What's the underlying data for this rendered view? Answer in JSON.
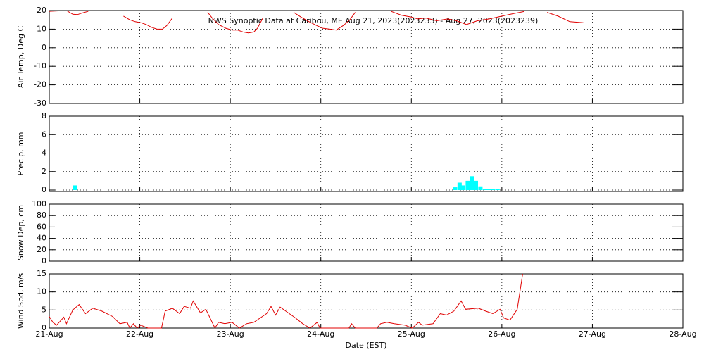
{
  "chart_data": [
    {
      "type": "line",
      "title": "NWS Synoptic Data at Caribou, ME   Aug 21, 2023(2023233) - Aug 27, 2023(2023239)",
      "ylabel": "Air Temp, Deg C",
      "color": "#e00000",
      "xlim": [
        0,
        7
      ],
      "xticks": [
        0,
        1,
        2,
        3,
        4,
        5,
        6,
        7
      ],
      "ylim": [
        -30,
        20
      ],
      "yticks": [
        -30,
        -20,
        -10,
        0,
        10,
        20
      ],
      "grid": true,
      "x": [
        0,
        0.1,
        0.19,
        0.26,
        0.31,
        0.37,
        0.43,
        0.5,
        0.82,
        0.89,
        0.95,
        1.01,
        1.07,
        1.13,
        1.19,
        1.25,
        1.3,
        1.36,
        1.4,
        1.75,
        1.8,
        1.87,
        1.95,
        2.02,
        2.08,
        2.14,
        2.2,
        2.26,
        2.3,
        2.36,
        2.4,
        2.7,
        2.78,
        2.87,
        2.95,
        3.02,
        3.1,
        3.17,
        3.25,
        3.32,
        3.38,
        3.42,
        3.78,
        3.89,
        4.0,
        4.07,
        4.16,
        4.28,
        4.4,
        4.5,
        4.61,
        4.73,
        4.86,
        5.0,
        5.14,
        5.25,
        5.32,
        5.5,
        5.62,
        5.75,
        5.9
      ],
      "values": [
        19.6,
        19.8,
        20,
        18,
        17.8,
        18.8,
        19.6,
        null,
        17,
        15,
        14,
        13.5,
        12.5,
        11,
        10,
        10,
        12,
        16,
        null,
        19,
        16,
        12.5,
        10.5,
        9.5,
        9.5,
        8.5,
        8,
        8.5,
        10.5,
        16,
        null,
        19,
        16.5,
        14,
        12,
        10.5,
        10,
        9.5,
        12,
        15,
        19,
        null,
        19.5,
        17.5,
        16.5,
        15.5,
        16,
        14.5,
        15.5,
        14.5,
        12.5,
        14.5,
        15.5,
        17,
        18.5,
        19.5,
        null,
        19,
        17,
        14,
        13.5
      ]
    },
    {
      "type": "bar",
      "ylabel": "Precip, mm",
      "color": "#00ffff",
      "xlim": [
        0,
        7
      ],
      "xticks": [
        0,
        1,
        2,
        3,
        4,
        5,
        6,
        7
      ],
      "ylim": [
        0,
        8
      ],
      "yticks": [
        0,
        2,
        4,
        6,
        8
      ],
      "grid": true,
      "x": [
        0.26,
        4.46,
        4.51,
        4.55,
        4.6,
        4.65,
        4.69,
        4.74,
        4.79,
        4.83,
        4.88,
        4.93
      ],
      "values": [
        0.5,
        0.3,
        0.8,
        0.5,
        1.0,
        1.5,
        1.0,
        0.4,
        0.1,
        0.1,
        0.1,
        0.1
      ]
    },
    {
      "type": "line",
      "ylabel": "Snow Dep, cm",
      "color": "#e00000",
      "xlim": [
        0,
        7
      ],
      "xticks": [
        0,
        1,
        2,
        3,
        4,
        5,
        6,
        7
      ],
      "ylim": [
        0,
        100
      ],
      "yticks": [
        0,
        20,
        40,
        60,
        80,
        100
      ],
      "grid": true,
      "x": [],
      "values": []
    },
    {
      "type": "line",
      "ylabel": "Wind Spd, m/s",
      "xlabel": "Date (EST)",
      "color": "#e00000",
      "xlim": [
        0,
        7
      ],
      "xticks": [
        {
          "value": 0,
          "label": "21-Aug"
        },
        {
          "value": 1,
          "label": "22-Aug"
        },
        {
          "value": 2,
          "label": "23-Aug"
        },
        {
          "value": 3,
          "label": "24-Aug"
        },
        {
          "value": 4,
          "label": "25-Aug"
        },
        {
          "value": 5,
          "label": "26-Aug"
        },
        {
          "value": 6,
          "label": "27-Aug"
        },
        {
          "value": 7,
          "label": "28-Aug"
        }
      ],
      "ylim": [
        0,
        15
      ],
      "yticks": [
        0,
        5,
        10,
        15
      ],
      "grid": true,
      "x": [
        0,
        0.04,
        0.08,
        0.16,
        0.19,
        0.26,
        0.33,
        0.4,
        0.48,
        0.58,
        0.7,
        0.78,
        0.86,
        0.89,
        0.93,
        0.97,
        1.01,
        1.09,
        1.24,
        1.28,
        1.36,
        1.44,
        1.49,
        1.56,
        1.59,
        1.67,
        1.73,
        1.83,
        1.87,
        1.94,
        2.02,
        2.1,
        2.18,
        2.26,
        2.33,
        2.4,
        2.45,
        2.5,
        2.55,
        2.64,
        2.72,
        2.8,
        2.88,
        2.96,
        2.99,
        3.31,
        3.34,
        3.38,
        3.62,
        3.66,
        3.73,
        3.81,
        3.93,
        4.01,
        4.08,
        4.12,
        4.24,
        4.32,
        4.39,
        4.47,
        4.55,
        4.6,
        4.74,
        4.82,
        4.9,
        4.98,
        5.02,
        5.09,
        5.17,
        5.23
      ],
      "values": [
        3.2,
        1.6,
        0.8,
        3,
        1.2,
        5,
        6.5,
        4,
        5.5,
        4.7,
        3.2,
        1.2,
        1.6,
        0,
        1.2,
        0,
        0.8,
        0,
        0,
        4.7,
        5.5,
        4,
        6,
        5.5,
        7.5,
        4.2,
        5.2,
        0,
        1.6,
        1.2,
        1.6,
        0,
        1.2,
        1.6,
        2.8,
        4,
        6,
        3.6,
        5.8,
        4.2,
        2.8,
        1.2,
        0,
        1.6,
        0,
        0,
        1.2,
        0,
        0,
        1.2,
        1.6,
        1.2,
        0.8,
        0,
        1.6,
        0.8,
        1.2,
        4,
        3.6,
        4.7,
        7.5,
        5.2,
        5.5,
        4.7,
        4,
        5.2,
        2.8,
        2.2,
        5.2,
        15
      ]
    }
  ]
}
